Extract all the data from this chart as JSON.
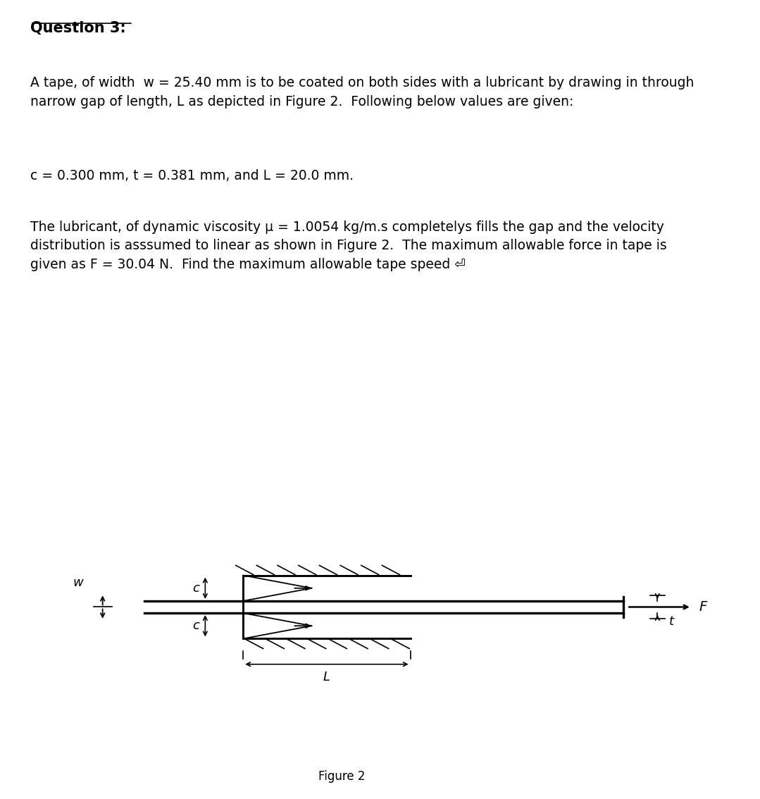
{
  "title": "Question 3:",
  "para1": "A tape, of width  w = 25.40 mm is to be coated on both sides with a lubricant by drawing in through\nnarrow gap of length, L as depicted in Figure 2.  Following below values are given:",
  "para2": "c = 0.300 mm, t = 0.381 mm, and L = 20.0 mm.",
  "para3": "The lubricant, of dynamic viscosity μ = 1.0054 kg/m.s completelys fills the gap and the velocity\ndistribution is asssumed to linear as shown in Figure 2.  The maximum allowable force in tape is\ngiven as F = 30.04 N.  Find the maximum allowable tape speed ⏎",
  "figure_caption": "Figure 2",
  "bg_color_top": "#ffffff",
  "bg_color_bottom": "#f5f5f5",
  "divider_color": "#d0d0d0",
  "text_color": "#000000",
  "line_color": "#000000",
  "title_fontsize": 15,
  "body_fontsize": 13.5,
  "caption_fontsize": 12
}
